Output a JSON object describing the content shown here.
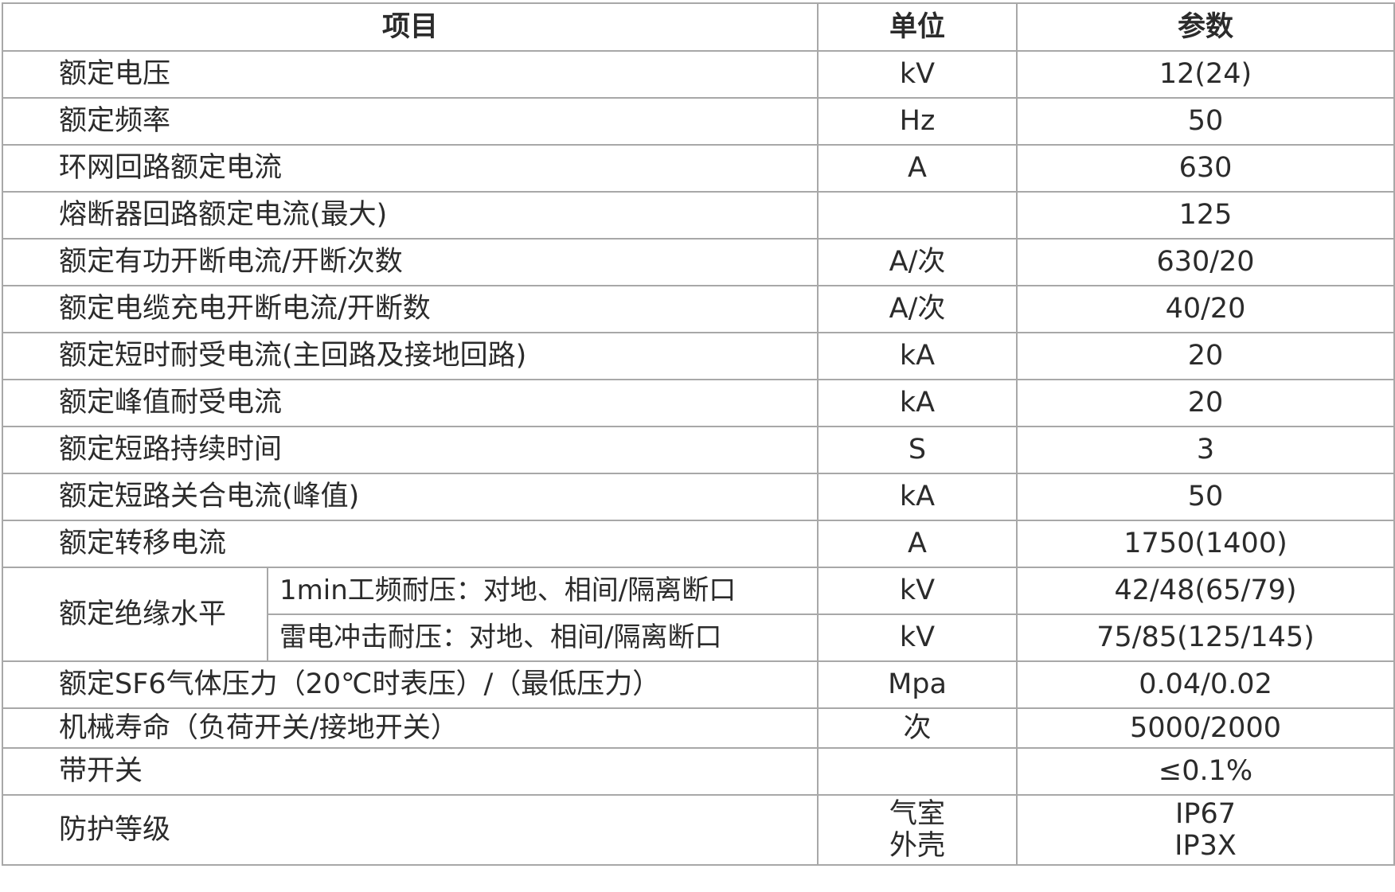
{
  "table": {
    "headers": [
      "项目",
      "单位",
      "参数"
    ],
    "rows": [
      {
        "item": "额定电压",
        "unit": "kV",
        "value": "12(24)"
      },
      {
        "item": "额定频率",
        "unit": "Hz",
        "value": "50"
      },
      {
        "item": "环网回路额定电流",
        "unit": "A",
        "value": "630"
      },
      {
        "item": "熔断器回路额定电流(最大)",
        "unit": "",
        "value": "125"
      },
      {
        "item": "额定有功开断电流/开断次数",
        "unit": "A/次",
        "value": "630/20"
      },
      {
        "item": "额定电缆充电开断电流/开断数",
        "unit": "A/次",
        "value": "40/20"
      },
      {
        "item": "额定短时耐受电流(主回路及接地回路)",
        "unit": "kA",
        "value": "20"
      },
      {
        "item": "额定峰值耐受电流",
        "unit": "kA",
        "value": "20"
      },
      {
        "item": "额定短路持续时间",
        "unit": "S",
        "value": "3"
      },
      {
        "item": "额定短路关合电流(峰值)",
        "unit": "kA",
        "value": "50"
      },
      {
        "item": "额定转移电流",
        "unit": "A",
        "value": "1750(1400)"
      }
    ],
    "insulation": {
      "item": "额定绝缘水平",
      "subrows": [
        {
          "sub": "1min工频耐压：对地、相间/隔离断口",
          "unit": "kV",
          "value": "42/48(65/79)"
        },
        {
          "sub": "雷电冲击耐压：对地、相间/隔离断口",
          "unit": "kV",
          "value": "75/85(125/145)"
        }
      ]
    },
    "rows2": [
      {
        "item": "额定SF6气体压力（20℃时表压）/（最低压力）",
        "unit": "Mpa",
        "value": "0.04/0.02"
      },
      {
        "item": "机械寿命（负荷开关/接地开关）",
        "unit": "次",
        "value": "5000/2000"
      },
      {
        "item": "带开关",
        "unit": "",
        "value": "≤0.1%"
      }
    ],
    "protection": {
      "item": "防护等级",
      "units": [
        "气室",
        "外壳"
      ],
      "values": [
        "IP67",
        "IP3X"
      ]
    }
  }
}
